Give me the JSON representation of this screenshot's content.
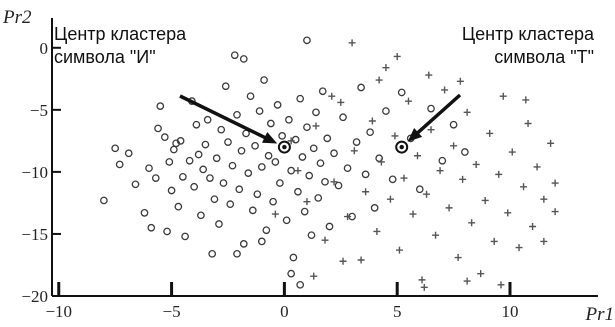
{
  "chart_data": {
    "type": "scatter",
    "title": "",
    "xlabel": "Pr1",
    "ylabel": "Pr2",
    "xlim": [
      -10.3,
      13.9
    ],
    "ylim": [
      -20,
      2.4
    ],
    "xticks": [
      -10,
      -5,
      0,
      5,
      10
    ],
    "yticks": [
      0,
      -5,
      -10,
      -15,
      -20
    ],
    "grid": false,
    "legend": "none",
    "series": [
      {
        "marker": "circle",
        "color": "#3a3a3a",
        "points": [
          [
            -8,
            -12.3
          ],
          [
            -7.5,
            -8.1
          ],
          [
            -7.3,
            -9.4
          ],
          [
            -6.9,
            -8.5
          ],
          [
            -6.6,
            -11
          ],
          [
            -6.2,
            -13.3
          ],
          [
            -5.9,
            -14.5
          ],
          [
            -5.7,
            -10.5
          ],
          [
            -5.6,
            -6.5
          ],
          [
            -5.5,
            -4.7
          ],
          [
            -5.3,
            -7.2
          ],
          [
            -5.2,
            -14.8
          ],
          [
            -5.1,
            -9.2
          ],
          [
            -5,
            -11.5
          ],
          [
            -4.9,
            -8.2
          ],
          [
            -4.7,
            -12.8
          ],
          [
            -4.6,
            -7.5
          ],
          [
            -4.5,
            -10.4
          ],
          [
            -4.4,
            -15.2
          ],
          [
            -4.2,
            -9.1
          ],
          [
            -4.1,
            -4.3
          ],
          [
            -4,
            -11.2
          ],
          [
            -3.9,
            -6.2
          ],
          [
            -3.8,
            -8.6
          ],
          [
            -3.7,
            -13.5
          ],
          [
            -3.6,
            -9.8
          ],
          [
            -3.5,
            -7.8
          ],
          [
            -3.4,
            -5.8
          ],
          [
            -3.3,
            -10.5
          ],
          [
            -3.2,
            -16.6
          ],
          [
            -3.1,
            -12.2
          ],
          [
            -3,
            -8.9
          ],
          [
            -2.9,
            -14.2
          ],
          [
            -2.8,
            -6.6
          ],
          [
            -2.7,
            -10.9
          ],
          [
            -2.6,
            -3.1
          ],
          [
            -2.5,
            -7.6
          ],
          [
            -2.4,
            -12.6
          ],
          [
            -2.3,
            -9.5
          ],
          [
            -2.2,
            -0.6
          ],
          [
            -2.1,
            -5.4
          ],
          [
            -2,
            -11.4
          ],
          [
            -1.9,
            -8.3
          ],
          [
            -1.8,
            -15.8
          ],
          [
            -1.7,
            -6.9
          ],
          [
            -1.6,
            -10.1
          ],
          [
            -1.5,
            -3.9
          ],
          [
            -1.4,
            -13.1
          ],
          [
            -1.3,
            -7.9
          ],
          [
            -1.2,
            -11.8
          ],
          [
            -1.1,
            -5.1
          ],
          [
            -1,
            -9.6
          ],
          [
            -0.9,
            -2.6
          ],
          [
            -0.8,
            -14.7
          ],
          [
            -0.7,
            -8.7
          ],
          [
            -0.6,
            -6.1
          ],
          [
            -0.5,
            -12.4
          ],
          [
            -0.4,
            -9.2
          ],
          [
            -0.3,
            -4.6
          ],
          [
            -0.2,
            -10.9
          ],
          [
            -0.1,
            -7.1
          ],
          [
            0.1,
            -13.9
          ],
          [
            0.2,
            -5.8
          ],
          [
            0.3,
            -9.9
          ],
          [
            0.4,
            -16.9
          ],
          [
            0.5,
            -7.4
          ],
          [
            0.6,
            -11.6
          ],
          [
            0.7,
            -4.1
          ],
          [
            0.8,
            -8.8
          ],
          [
            0.9,
            -13.2
          ],
          [
            1,
            -6.4
          ],
          [
            1.1,
            -10.3
          ],
          [
            1.2,
            -15.1
          ],
          [
            1.3,
            -8.1
          ],
          [
            1.4,
            -5.2
          ],
          [
            1.5,
            -12.1
          ],
          [
            1.6,
            -9.3
          ],
          [
            1.7,
            -3.5
          ],
          [
            1.8,
            -10.8
          ],
          [
            1.9,
            -7.3
          ],
          [
            2,
            -14.4
          ],
          [
            2.2,
            -8.5
          ],
          [
            2.4,
            -11.1
          ],
          [
            2.6,
            -5.6
          ],
          [
            2.8,
            -9.7
          ],
          [
            3,
            -13.6
          ],
          [
            3.2,
            -7.6
          ],
          [
            3.4,
            -3.2
          ],
          [
            3.6,
            -10.2
          ],
          [
            3.8,
            -6.8
          ],
          [
            4,
            -12.9
          ],
          [
            4.2,
            -8.9
          ],
          [
            4.5,
            -5.1
          ],
          [
            4.8,
            -10.6
          ],
          [
            5.2,
            -3.6
          ],
          [
            5.6,
            -7.3
          ],
          [
            6,
            -11.4
          ],
          [
            6.5,
            -4.9
          ],
          [
            7,
            -9.1
          ],
          [
            7.5,
            -6.2
          ],
          [
            8,
            -8.4
          ],
          [
            1,
            0.6
          ],
          [
            -1.8,
            -0.9
          ],
          [
            -4.8,
            -7.7
          ],
          [
            -6,
            -9.7
          ],
          [
            -2.1,
            -16.6
          ],
          [
            0.7,
            -19.1
          ],
          [
            -1,
            -15.6
          ],
          [
            0.3,
            -18.2
          ]
        ]
      },
      {
        "marker": "plus",
        "color": "#555555",
        "points": [
          [
            0.3,
            -7.5
          ],
          [
            0.6,
            -9.9
          ],
          [
            1,
            -12.4
          ],
          [
            1.4,
            -6.3
          ],
          [
            1.8,
            -15.5
          ],
          [
            2.2,
            -10.8
          ],
          [
            2.5,
            -4.4
          ],
          [
            2.8,
            -13.6
          ],
          [
            3.1,
            -8.3
          ],
          [
            3.4,
            -17.1
          ],
          [
            3.6,
            -11.6
          ],
          [
            3.9,
            -5.9
          ],
          [
            4.1,
            -14.8
          ],
          [
            4.3,
            -9.2
          ],
          [
            4.5,
            -1.6
          ],
          [
            4.7,
            -12.2
          ],
          [
            4.9,
            -7.1
          ],
          [
            5.1,
            -16.3
          ],
          [
            5.3,
            -10.5
          ],
          [
            5.5,
            -4.3
          ],
          [
            5.7,
            -13.4
          ],
          [
            5.9,
            -8.7
          ],
          [
            6.1,
            -18.7
          ],
          [
            6.3,
            -11.8
          ],
          [
            6.5,
            -6.6
          ],
          [
            6.7,
            -15.1
          ],
          [
            6.9,
            -9.9
          ],
          [
            7.1,
            -3.4
          ],
          [
            7.3,
            -12.9
          ],
          [
            7.5,
            -7.9
          ],
          [
            7.7,
            -16.9
          ],
          [
            7.9,
            -10.6
          ],
          [
            8.1,
            -5.2
          ],
          [
            8.3,
            -14.1
          ],
          [
            8.5,
            -9.4
          ],
          [
            8.7,
            -18.2
          ],
          [
            8.9,
            -12.3
          ],
          [
            9.1,
            -6.9
          ],
          [
            9.3,
            -15.6
          ],
          [
            9.5,
            -10.2
          ],
          [
            9.7,
            -3.9
          ],
          [
            9.9,
            -13.3
          ],
          [
            10.1,
            -8.4
          ],
          [
            10.4,
            -16.1
          ],
          [
            10.6,
            -11.2
          ],
          [
            10.8,
            -6.1
          ],
          [
            11,
            -14.4
          ],
          [
            11.2,
            -9.6
          ],
          [
            11.5,
            -12.2
          ],
          [
            11.8,
            -7.7
          ],
          [
            12,
            -10.9
          ],
          [
            5,
            -0.7
          ],
          [
            3,
            0.4
          ],
          [
            7.8,
            -2.7
          ],
          [
            6.2,
            -19.3
          ],
          [
            8.1,
            -18.8
          ],
          [
            9.6,
            -19.1
          ],
          [
            2.1,
            -3.9
          ],
          [
            -0.4,
            -13.4
          ],
          [
            10.7,
            -4.2
          ],
          [
            6.4,
            -2.2
          ],
          [
            4.2,
            -2.6
          ],
          [
            11.5,
            -15.6
          ],
          [
            12,
            -13.2
          ],
          [
            2.6,
            -17.2
          ],
          [
            1.3,
            -18.4
          ]
        ]
      }
    ],
    "centers": [
      {
        "label": "Центр кластера\nсимвола \"И\"",
        "x": 0,
        "y": -8
      },
      {
        "label": "Центр кластера\nсимвола \"Т\"",
        "x": 5.2,
        "y": -8
      }
    ]
  }
}
